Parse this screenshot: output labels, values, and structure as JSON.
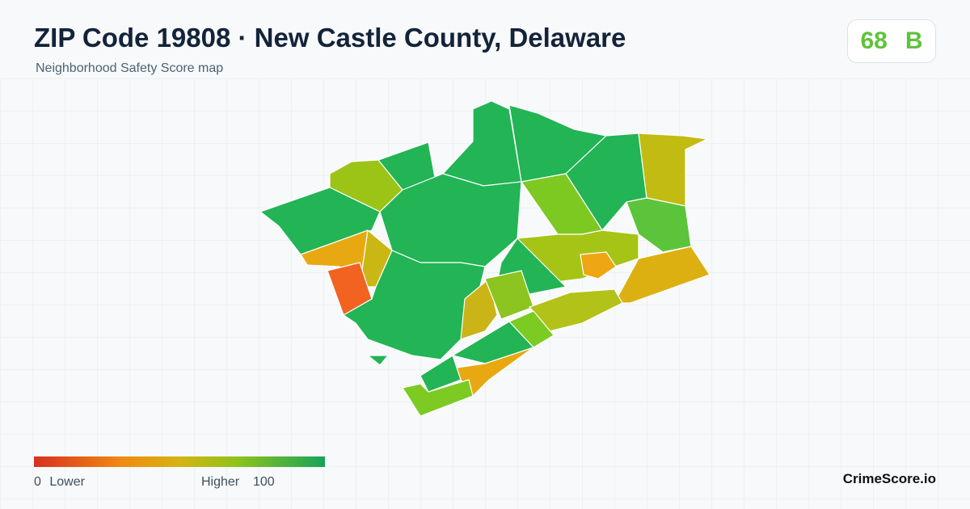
{
  "header": {
    "title": "ZIP Code 19808 · New Castle County, Delaware",
    "subtitle": "Neighborhood Safety Score map"
  },
  "score": {
    "value": 68,
    "grade": "B"
  },
  "legend": {
    "min": 0,
    "min_label": "Lower",
    "max_label": "Higher",
    "max": 100
  },
  "footer": {
    "brand": "CrimeScore.io"
  }
}
